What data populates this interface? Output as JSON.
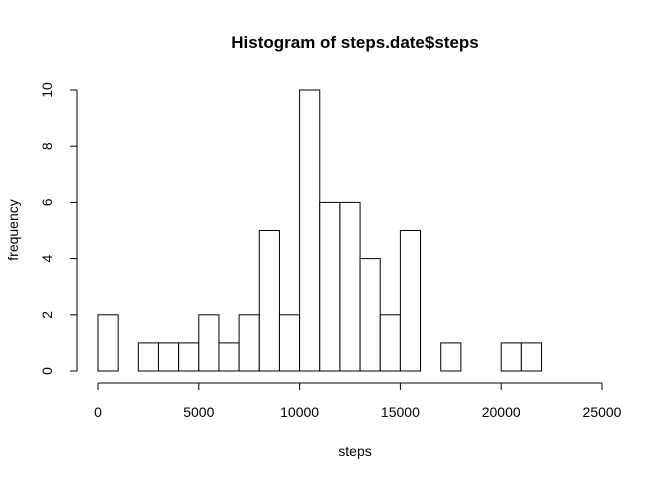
{
  "chart_data": {
    "type": "bar",
    "title": "Histogram of steps.date$steps",
    "xlabel": "steps",
    "ylabel": "frequency",
    "bin_width": 1000,
    "bin_starts": [
      0,
      1000,
      2000,
      3000,
      4000,
      5000,
      6000,
      7000,
      8000,
      9000,
      10000,
      11000,
      12000,
      13000,
      14000,
      15000,
      16000,
      17000,
      18000,
      19000,
      20000,
      21000
    ],
    "values": [
      2,
      0,
      1,
      1,
      1,
      2,
      1,
      2,
      5,
      2,
      10,
      6,
      6,
      4,
      2,
      5,
      0,
      1,
      0,
      0,
      1,
      1
    ],
    "xlim": [
      0,
      25000
    ],
    "ylim": [
      0,
      10
    ],
    "x_ticks": [
      0,
      5000,
      10000,
      15000,
      20000,
      25000
    ],
    "y_ticks": [
      0,
      2,
      4,
      6,
      8,
      10
    ],
    "grid": false,
    "legend": "none"
  }
}
